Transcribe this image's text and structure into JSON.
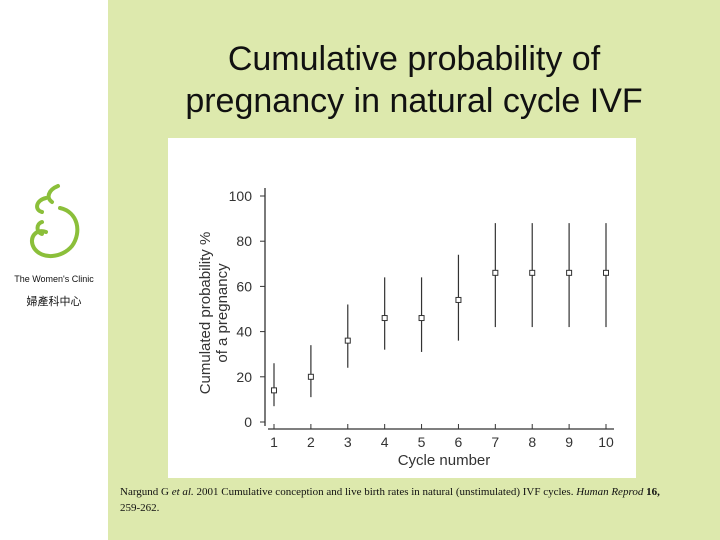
{
  "slide": {
    "title_line1": "Cumulative probability of",
    "title_line2": "pregnancy in natural cycle IVF",
    "brand_color": "#8bbf3a",
    "background_color": "#dde9ad"
  },
  "sidebar": {
    "logo_icon": "womens-clinic-logo-icon",
    "clinic_name_en": "The Women's Clinic",
    "clinic_name_cn": "婦產科中心"
  },
  "citation": {
    "authors": "Nargund G",
    "et_al": "et al.",
    "year_title": " 2001 Cumulative conception and live birth rates in natural (unstimulated) IVF cycles. ",
    "journal": "Human Reprod",
    "volume": " 16,",
    "pages": " 259-262."
  },
  "chart_data": {
    "type": "scatter",
    "title": "",
    "xlabel": "Cycle number",
    "ylabel_line1": "Cumulated probability %",
    "ylabel_line2": "of a pregnancy",
    "xlim": [
      1,
      10
    ],
    "ylim": [
      0,
      100
    ],
    "x_ticks": [
      "1",
      "2",
      "3",
      "4",
      "5",
      "6",
      "7",
      "8",
      "9",
      "10"
    ],
    "y_ticks": [
      "0",
      "20",
      "40",
      "60",
      "80",
      "100"
    ],
    "grid": false,
    "points": [
      {
        "x": 1,
        "y": 14,
        "low": 7,
        "high": 26
      },
      {
        "x": 2,
        "y": 20,
        "low": 11,
        "high": 34
      },
      {
        "x": 3,
        "y": 36,
        "low": 24,
        "high": 52
      },
      {
        "x": 4,
        "y": 46,
        "low": 32,
        "high": 64
      },
      {
        "x": 5,
        "y": 46,
        "low": 31,
        "high": 64
      },
      {
        "x": 6,
        "y": 54,
        "low": 36,
        "high": 74
      },
      {
        "x": 7,
        "y": 66,
        "low": 42,
        "high": 88
      },
      {
        "x": 8,
        "y": 66,
        "low": 42,
        "high": 88
      },
      {
        "x": 9,
        "y": 66,
        "low": 42,
        "high": 88
      },
      {
        "x": 10,
        "y": 66,
        "low": 42,
        "high": 88
      }
    ]
  }
}
